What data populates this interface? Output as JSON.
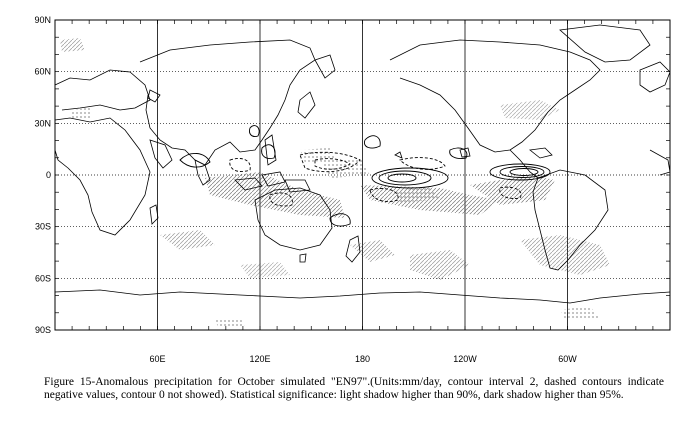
{
  "map": {
    "lat_labels": [
      "90N",
      "60N",
      "30N",
      "0",
      "30S",
      "60S",
      "90S"
    ],
    "lat_values": [
      90,
      60,
      30,
      0,
      -30,
      -60,
      -90
    ],
    "lon_labels": [
      "60E",
      "120E",
      "180",
      "120W",
      "60W"
    ],
    "lon_values": [
      60,
      120,
      180,
      240,
      300
    ],
    "lon_range": [
      0,
      360
    ],
    "lat_range": [
      -90,
      90
    ],
    "grid": "dotted",
    "colors": {
      "coast": "#000000",
      "grid": "#000000",
      "contour": "#000000",
      "shading": "#555555"
    }
  },
  "caption": "Figure 15-Anomalous precipitation for October simulated \"EN97\".(Units:mm/day, contour interval 2, dashed contours indicate negative values, contour 0 not showed). Statistical significance: light shadow higher than 90%, dark shadow higher than 95%."
}
